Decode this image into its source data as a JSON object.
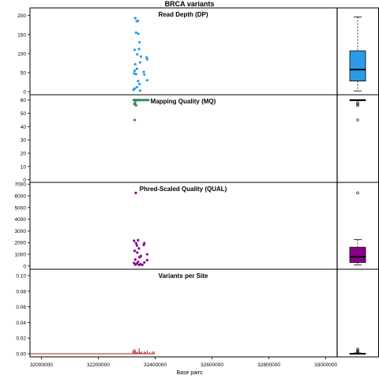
{
  "chart_data": {
    "type": "scatter",
    "title": "BRCA variants",
    "xlabel": "Base pairs",
    "xlim": [
      31960000,
      33040000
    ],
    "x_ticks": [
      32000000,
      32200000,
      32400000,
      32600000,
      32800000,
      33000000
    ],
    "x_tick_labels": [
      "32000000",
      "32200000",
      "32400000",
      "32600000",
      "32800000",
      "33000000"
    ],
    "panels": [
      {
        "title": "Read Depth (DP)",
        "color": "#2b9be8",
        "ylim": [
          -8,
          220
        ],
        "y_ticks": [
          0,
          50,
          100,
          150,
          200
        ],
        "points": [
          [
            32330000,
            193
          ],
          [
            32335000,
            185
          ],
          [
            32340000,
            186
          ],
          [
            32333000,
            155
          ],
          [
            32341000,
            152
          ],
          [
            32345000,
            130
          ],
          [
            32328000,
            110
          ],
          [
            32343000,
            112
          ],
          [
            32337000,
            98
          ],
          [
            32350000,
            92
          ],
          [
            32370000,
            90
          ],
          [
            32372000,
            85
          ],
          [
            32330000,
            72
          ],
          [
            32347000,
            77
          ],
          [
            32336000,
            60
          ],
          [
            32328000,
            55
          ],
          [
            32326000,
            48
          ],
          [
            32333000,
            46
          ],
          [
            32360000,
            52
          ],
          [
            32362000,
            45
          ],
          [
            32340000,
            28
          ],
          [
            32372000,
            30
          ],
          [
            32345000,
            20
          ],
          [
            32336000,
            12
          ],
          [
            32328000,
            8
          ],
          [
            32324000,
            5
          ],
          [
            32347000,
            3
          ]
        ],
        "box": {
          "min": 2,
          "q1": 28,
          "median": 58,
          "q3": 107,
          "max": 196,
          "outliers": []
        }
      },
      {
        "title": "Mapping Quality (MQ)",
        "color": "#2e8b57",
        "ylim": [
          -2,
          64
        ],
        "y_ticks": [
          0,
          10,
          20,
          30,
          40,
          50,
          60
        ],
        "points": [
          [
            32325000,
            60
          ],
          [
            32328000,
            60
          ],
          [
            32331000,
            60
          ],
          [
            32334000,
            60
          ],
          [
            32338000,
            60
          ],
          [
            32342000,
            60
          ],
          [
            32348000,
            60
          ],
          [
            32355000,
            60
          ],
          [
            32362000,
            60
          ],
          [
            32370000,
            60
          ],
          [
            32376000,
            60
          ],
          [
            32330000,
            58
          ],
          [
            32327000,
            57
          ],
          [
            32333000,
            56
          ],
          [
            32328000,
            45
          ]
        ],
        "box": {
          "min": 60,
          "q1": 60,
          "median": 60,
          "q3": 60,
          "max": 60,
          "outliers": [
            58,
            57,
            56,
            45
          ]
        }
      },
      {
        "title": "Phred-Scaled Quality (QUAL)",
        "color": "#8b008b",
        "ylim": [
          -280,
          7150
        ],
        "y_ticks": [
          0,
          1000,
          2000,
          3000,
          4000,
          5000,
          6000,
          7000
        ],
        "points": [
          [
            32332000,
            6250
          ],
          [
            32326000,
            2150
          ],
          [
            32340000,
            2200
          ],
          [
            32333000,
            1950
          ],
          [
            32362000,
            1950
          ],
          [
            32360000,
            1800
          ],
          [
            32336000,
            1750
          ],
          [
            32343000,
            1500
          ],
          [
            32328000,
            1300
          ],
          [
            32337000,
            1150
          ],
          [
            32372000,
            1000
          ],
          [
            32350000,
            850
          ],
          [
            32345000,
            750
          ],
          [
            32330000,
            550
          ],
          [
            32372000,
            500
          ],
          [
            32340000,
            350
          ],
          [
            32362000,
            300
          ],
          [
            32326000,
            250
          ],
          [
            32336000,
            200
          ],
          [
            32348000,
            150
          ],
          [
            32330000,
            120
          ],
          [
            32355000,
            100
          ],
          [
            32344000,
            90
          ]
        ],
        "box": {
          "min": 80,
          "q1": 300,
          "median": 780,
          "q3": 1600,
          "max": 2250,
          "outliers": [
            6250
          ]
        }
      },
      {
        "title": "Variants per Site",
        "color": "#b22222",
        "ylim": [
          -0.004,
          0.108
        ],
        "y_ticks": [
          0.0,
          0.02,
          0.04,
          0.06,
          0.08,
          0.1
        ],
        "y_tick_labels": [
          "0.00",
          "0.02",
          "0.04",
          "0.06",
          "0.08",
          "0.10"
        ],
        "bars": [
          [
            32322000,
            0.004
          ],
          [
            32326000,
            0.006
          ],
          [
            32330000,
            0.005
          ],
          [
            32334000,
            0.002
          ],
          [
            32338000,
            0.003
          ],
          [
            32344000,
            0.007
          ],
          [
            32348000,
            0.002
          ],
          [
            32352000,
            0.003
          ],
          [
            32356000,
            0.001
          ],
          [
            32362000,
            0.003
          ],
          [
            32366000,
            0.002
          ],
          [
            32372000,
            0.004
          ],
          [
            32380000,
            0.002
          ],
          [
            32390000,
            0.003
          ],
          [
            32396000,
            0.003
          ]
        ],
        "baseline_range": [
          31960000,
          32400000
        ],
        "box": {
          "min": 0.0,
          "q1": 0.0,
          "median": 0.0,
          "q3": 0.0005,
          "max": 0.001,
          "outliers": [
            0.002,
            0.003,
            0.004,
            0.006
          ]
        }
      }
    ]
  }
}
